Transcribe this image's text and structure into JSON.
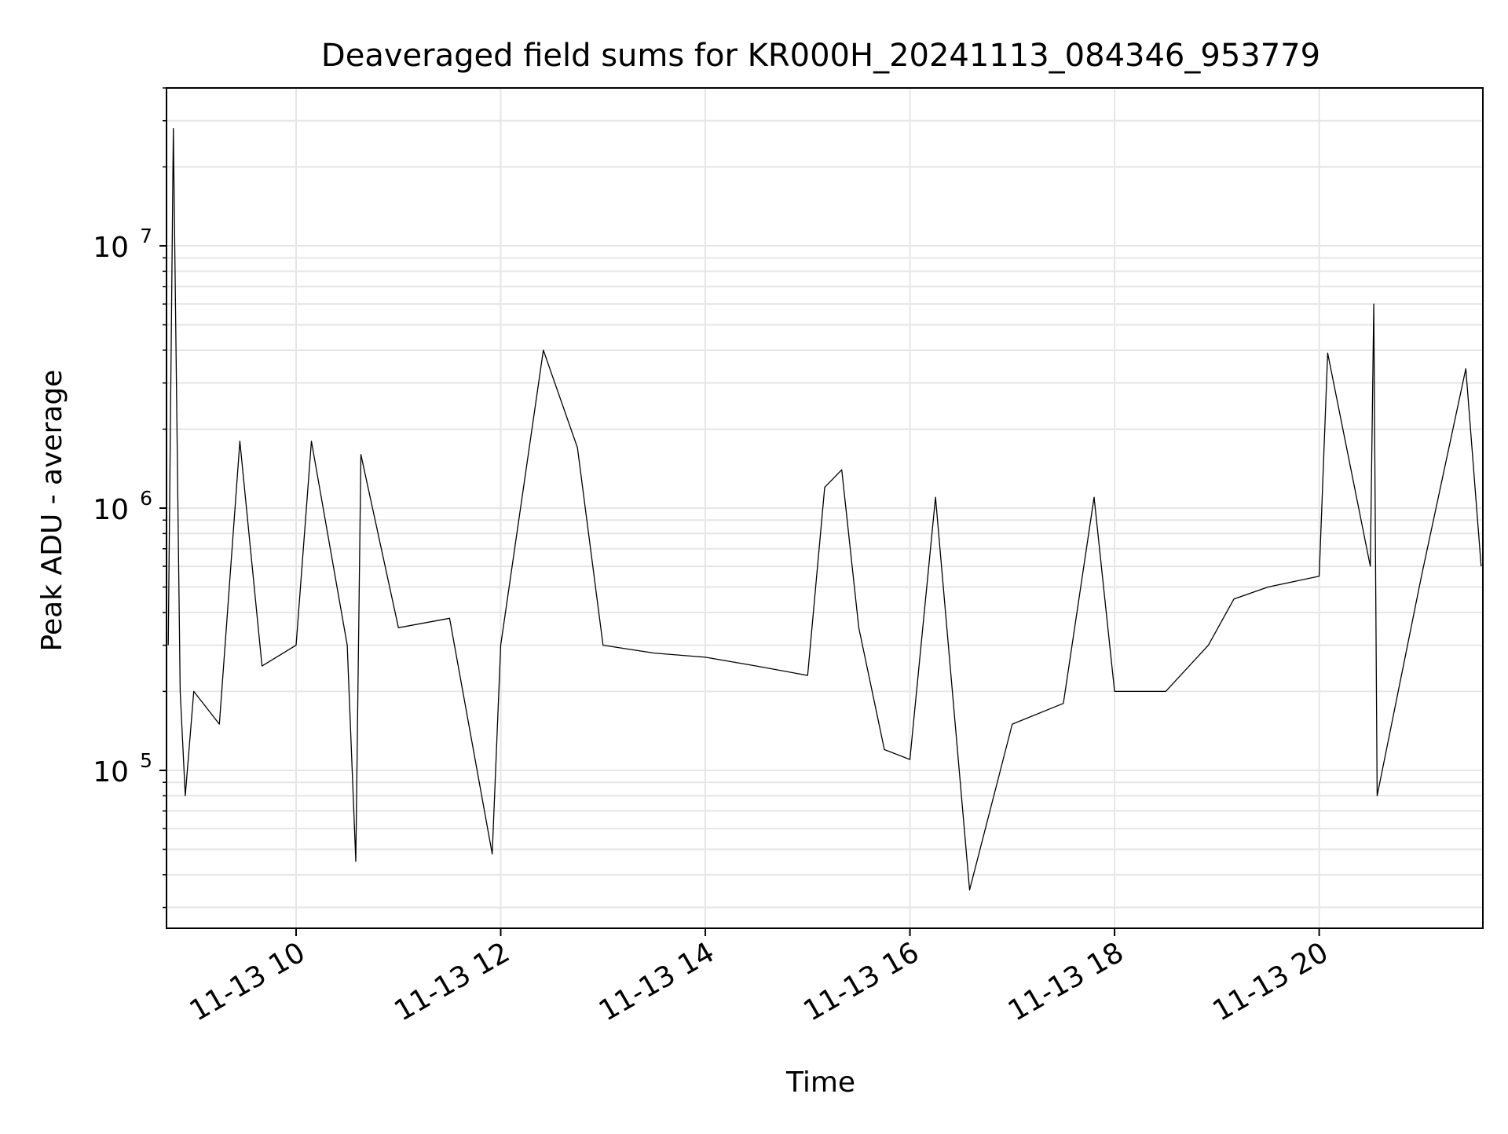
{
  "chart_data": {
    "type": "line",
    "title": "Deaveraged field sums for KR000H_20241113_084346_953779",
    "xlabel": "Time",
    "ylabel": "Peak ADU - average",
    "x_scale": "time",
    "y_scale": "log",
    "xlim": [
      "2024-11-13 08:44",
      "2024-11-13 21:36"
    ],
    "ylim": [
      25000,
      40000000
    ],
    "x_ticks": [
      {
        "time": "2024-11-13 10:00",
        "label": "11-13 10"
      },
      {
        "time": "2024-11-13 12:00",
        "label": "11-13 12"
      },
      {
        "time": "2024-11-13 14:00",
        "label": "11-13 14"
      },
      {
        "time": "2024-11-13 16:00",
        "label": "11-13 16"
      },
      {
        "time": "2024-11-13 18:00",
        "label": "11-13 18"
      },
      {
        "time": "2024-11-13 20:00",
        "label": "11-13 20"
      }
    ],
    "y_ticks": [
      {
        "value": 100000,
        "base": "10",
        "exp": "5"
      },
      {
        "value": 1000000,
        "base": "10",
        "exp": "6"
      },
      {
        "value": 10000000,
        "base": "10",
        "exp": "7"
      }
    ],
    "grid": true,
    "line_color": "#000000",
    "grid_color": "#e6e6e6",
    "series": [
      {
        "points": [
          [
            "2024-11-13 08:45",
            300000
          ],
          [
            "2024-11-13 08:48",
            28000000
          ],
          [
            "2024-11-13 08:52",
            200000
          ],
          [
            "2024-11-13 08:55",
            80000
          ],
          [
            "2024-11-13 09:00",
            200000
          ],
          [
            "2024-11-13 09:15",
            150000
          ],
          [
            "2024-11-13 09:27",
            1800000
          ],
          [
            "2024-11-13 09:40",
            250000
          ],
          [
            "2024-11-13 10:00",
            300000
          ],
          [
            "2024-11-13 10:09",
            1800000
          ],
          [
            "2024-11-13 10:30",
            300000
          ],
          [
            "2024-11-13 10:35",
            45000
          ],
          [
            "2024-11-13 10:38",
            1600000
          ],
          [
            "2024-11-13 11:00",
            350000
          ],
          [
            "2024-11-13 11:30",
            380000
          ],
          [
            "2024-11-13 11:55",
            48000
          ],
          [
            "2024-11-13 12:00",
            300000
          ],
          [
            "2024-11-13 12:25",
            4000000
          ],
          [
            "2024-11-13 12:45",
            1700000
          ],
          [
            "2024-11-13 13:00",
            300000
          ],
          [
            "2024-11-13 13:30",
            280000
          ],
          [
            "2024-11-13 14:00",
            270000
          ],
          [
            "2024-11-13 14:30",
            250000
          ],
          [
            "2024-11-13 15:00",
            230000
          ],
          [
            "2024-11-13 15:10",
            1200000
          ],
          [
            "2024-11-13 15:20",
            1400000
          ],
          [
            "2024-11-13 15:30",
            350000
          ],
          [
            "2024-11-13 15:45",
            120000
          ],
          [
            "2024-11-13 16:00",
            110000
          ],
          [
            "2024-11-13 16:15",
            1100000
          ],
          [
            "2024-11-13 16:35",
            35000
          ],
          [
            "2024-11-13 17:00",
            150000
          ],
          [
            "2024-11-13 17:30",
            180000
          ],
          [
            "2024-11-13 17:48",
            1100000
          ],
          [
            "2024-11-13 18:00",
            200000
          ],
          [
            "2024-11-13 18:30",
            200000
          ],
          [
            "2024-11-13 18:55",
            300000
          ],
          [
            "2024-11-13 19:10",
            450000
          ],
          [
            "2024-11-13 19:30",
            500000
          ],
          [
            "2024-11-13 20:00",
            550000
          ],
          [
            "2024-11-13 20:05",
            3900000
          ],
          [
            "2024-11-13 20:30",
            600000
          ],
          [
            "2024-11-13 20:32",
            6000000
          ],
          [
            "2024-11-13 20:34",
            80000
          ],
          [
            "2024-11-13 21:00",
            550000
          ],
          [
            "2024-11-13 21:26",
            3400000
          ],
          [
            "2024-11-13 21:35",
            600000
          ]
        ]
      }
    ]
  }
}
